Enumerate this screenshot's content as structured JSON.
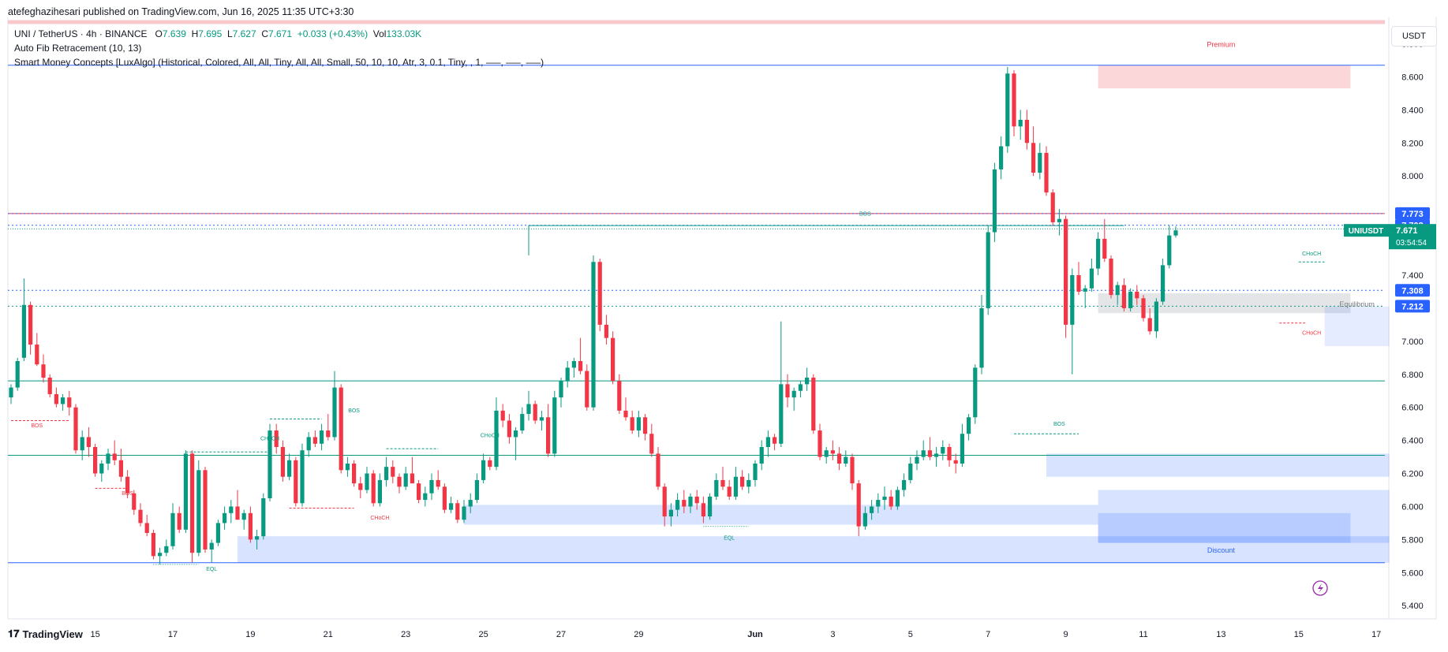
{
  "header": {
    "published_by": "atefeghazihesari published on TradingView.com, Jun 16, 2025 11:35 UTC+3:30"
  },
  "legend": {
    "symbol": "UNI / TetherUS · 4h · BINANCE",
    "open_label": "O",
    "open": "7.639",
    "high_label": "H",
    "high": "7.695",
    "low_label": "L",
    "low": "7.627",
    "close_label": "C",
    "close": "7.671",
    "change": "+0.033 (+0.43%)",
    "vol_label": "Vol",
    "vol": "133.03K",
    "indicator_1": "Auto Fib Retracement (10, 13)",
    "indicator_2": "Smart Money Concepts [LuxAlgo] (Historical, Colored, All, All, Tiny, All, All, Small, 50, 10, 10, Atr, 3, 0.1, Tiny, , 1, —–, —–, —–)"
  },
  "currency_button": "USDT",
  "footer": {
    "brand": "TradingView"
  },
  "colors": {
    "up": "#089981",
    "down": "#f23645",
    "accent": "#2962ff"
  },
  "chart_data": {
    "type": "candlestick",
    "symbol": "UNIUSDT",
    "interval": "4h",
    "y_ticks": [
      "8.800",
      "8.600",
      "8.400",
      "8.200",
      "8.000",
      "7.400",
      "7.200",
      "7.000",
      "6.800",
      "6.600",
      "6.400",
      "6.200",
      "6.000",
      "5.800",
      "5.600",
      "5.400"
    ],
    "ylim": [
      5.32,
      8.96
    ],
    "x_ticks": [
      {
        "label": "15",
        "i": 13
      },
      {
        "label": "17",
        "i": 25
      },
      {
        "label": "19",
        "i": 37
      },
      {
        "label": "21",
        "i": 49
      },
      {
        "label": "23",
        "i": 61
      },
      {
        "label": "25",
        "i": 73
      },
      {
        "label": "27",
        "i": 85
      },
      {
        "label": "29",
        "i": 97
      },
      {
        "label": "Jun",
        "i": 115
      },
      {
        "label": "3",
        "i": 127
      },
      {
        "label": "5",
        "i": 139
      },
      {
        "label": "7",
        "i": 151
      },
      {
        "label": "9",
        "i": 163
      },
      {
        "label": "11",
        "i": 175
      },
      {
        "label": "13",
        "i": 187
      },
      {
        "label": "15",
        "i": 199
      },
      {
        "label": "17",
        "i": 211
      }
    ],
    "price_labels": [
      {
        "text": "7.773",
        "value": 7.773,
        "color": "#2962ff"
      },
      {
        "text": "7.702",
        "value": 7.702,
        "color": "#2962ff"
      },
      {
        "text": "7.308",
        "value": 7.308,
        "color": "#2962ff"
      },
      {
        "text": "7.212",
        "value": 7.212,
        "color": "#2962ff"
      }
    ],
    "last_price": {
      "symbol": "UNIUSDT",
      "price": "7.671",
      "value": 7.671,
      "countdown": "03:54:54"
    },
    "zone_labels": {
      "premium": "Premium",
      "discount": "Discount",
      "equilibrium": "Equilibrium"
    },
    "smc_labels": [
      {
        "text": "BOS",
        "i": 4,
        "value": 6.48,
        "color": "#f23645"
      },
      {
        "text": "BOS",
        "i": 18,
        "value": 6.07,
        "color": "#f23645"
      },
      {
        "text": "CHoCH",
        "i": 40,
        "value": 6.4,
        "color": "#089981"
      },
      {
        "text": "BOS",
        "i": 53,
        "value": 6.57,
        "color": "#089981"
      },
      {
        "text": "CHoCH",
        "i": 57,
        "value": 5.92,
        "color": "#f23645"
      },
      {
        "text": "CHoCH",
        "i": 74,
        "value": 6.42,
        "color": "#089981"
      },
      {
        "text": "EQL",
        "i": 31,
        "value": 5.61,
        "color": "#089981"
      },
      {
        "text": "EQL",
        "i": 111,
        "value": 5.8,
        "color": "#089981"
      },
      {
        "text": "BOS",
        "i": 132,
        "value": 7.76,
        "color": "#089981"
      },
      {
        "text": "BOS",
        "i": 162,
        "value": 6.49,
        "color": "#089981"
      },
      {
        "text": "CHoCH",
        "i": 201,
        "value": 7.52,
        "color": "#089981"
      },
      {
        "text": "CHoCH",
        "i": 201,
        "value": 7.04,
        "color": "#f23645"
      }
    ],
    "candles": [
      [
        6.66,
        6.74,
        6.62,
        6.72
      ],
      [
        6.72,
        6.9,
        6.7,
        6.88
      ],
      [
        6.9,
        7.38,
        6.88,
        7.22
      ],
      [
        7.22,
        7.24,
        6.92,
        6.98
      ],
      [
        6.98,
        7.05,
        6.85,
        6.86
      ],
      [
        6.86,
        6.92,
        6.75,
        6.78
      ],
      [
        6.78,
        6.8,
        6.66,
        6.68
      ],
      [
        6.68,
        6.72,
        6.6,
        6.62
      ],
      [
        6.62,
        6.68,
        6.58,
        6.66
      ],
      [
        6.66,
        6.7,
        6.55,
        6.6
      ],
      [
        6.6,
        6.62,
        6.32,
        6.34
      ],
      [
        6.34,
        6.46,
        6.28,
        6.42
      ],
      [
        6.42,
        6.48,
        6.3,
        6.36
      ],
      [
        6.36,
        6.38,
        6.18,
        6.2
      ],
      [
        6.2,
        6.28,
        6.15,
        6.26
      ],
      [
        6.26,
        6.35,
        6.22,
        6.32
      ],
      [
        6.32,
        6.4,
        6.25,
        6.28
      ],
      [
        6.28,
        6.35,
        6.15,
        6.18
      ],
      [
        6.18,
        6.22,
        6.05,
        6.08
      ],
      [
        6.08,
        6.1,
        5.95,
        5.98
      ],
      [
        5.98,
        6.02,
        5.88,
        5.9
      ],
      [
        5.9,
        5.95,
        5.82,
        5.84
      ],
      [
        5.84,
        5.86,
        5.68,
        5.7
      ],
      [
        5.7,
        5.75,
        5.65,
        5.72
      ],
      [
        5.72,
        5.8,
        5.7,
        5.76
      ],
      [
        5.76,
        6.02,
        5.74,
        5.96
      ],
      [
        5.96,
        6.0,
        5.84,
        5.86
      ],
      [
        5.86,
        6.34,
        5.84,
        6.32
      ],
      [
        6.32,
        6.34,
        5.66,
        5.72
      ],
      [
        5.72,
        6.28,
        5.7,
        6.22
      ],
      [
        6.22,
        6.24,
        5.72,
        5.74
      ],
      [
        5.74,
        5.8,
        5.66,
        5.78
      ],
      [
        5.78,
        5.92,
        5.76,
        5.9
      ],
      [
        5.9,
        6.0,
        5.86,
        5.96
      ],
      [
        5.96,
        6.04,
        5.9,
        6.0
      ],
      [
        6.0,
        6.1,
        5.95,
        5.92
      ],
      [
        5.92,
        5.98,
        5.86,
        5.96
      ],
      [
        5.96,
        6.0,
        5.78,
        5.8
      ],
      [
        5.8,
        5.86,
        5.74,
        5.82
      ],
      [
        5.82,
        6.08,
        5.8,
        6.05
      ],
      [
        6.05,
        6.5,
        6.03,
        6.46
      ],
      [
        6.46,
        6.5,
        6.32,
        6.36
      ],
      [
        6.36,
        6.4,
        6.15,
        6.18
      ],
      [
        6.18,
        6.32,
        6.16,
        6.28
      ],
      [
        6.28,
        6.3,
        6.0,
        6.02
      ],
      [
        6.02,
        6.38,
        6.0,
        6.34
      ],
      [
        6.34,
        6.45,
        6.3,
        6.42
      ],
      [
        6.42,
        6.46,
        6.36,
        6.38
      ],
      [
        6.38,
        6.5,
        6.34,
        6.46
      ],
      [
        6.46,
        6.56,
        6.4,
        6.42
      ],
      [
        6.42,
        6.82,
        6.4,
        6.72
      ],
      [
        6.72,
        6.74,
        6.2,
        6.22
      ],
      [
        6.22,
        6.3,
        6.18,
        6.26
      ],
      [
        6.26,
        6.28,
        6.12,
        6.14
      ],
      [
        6.14,
        6.18,
        6.05,
        6.1
      ],
      [
        6.1,
        6.24,
        6.08,
        6.2
      ],
      [
        6.2,
        6.22,
        6.0,
        6.02
      ],
      [
        6.02,
        6.2,
        6.0,
        6.16
      ],
      [
        6.16,
        6.3,
        6.12,
        6.24
      ],
      [
        6.24,
        6.28,
        6.14,
        6.18
      ],
      [
        6.18,
        6.2,
        6.08,
        6.12
      ],
      [
        6.12,
        6.24,
        6.1,
        6.2
      ],
      [
        6.2,
        6.3,
        6.16,
        6.14
      ],
      [
        6.14,
        6.16,
        6.02,
        6.04
      ],
      [
        6.04,
        6.12,
        6.0,
        6.08
      ],
      [
        6.08,
        6.2,
        6.04,
        6.16
      ],
      [
        6.16,
        6.22,
        6.1,
        6.12
      ],
      [
        6.12,
        6.14,
        5.96,
        5.98
      ],
      [
        5.98,
        6.06,
        5.96,
        6.02
      ],
      [
        6.02,
        6.04,
        5.9,
        5.92
      ],
      [
        5.92,
        6.04,
        5.9,
        6.0
      ],
      [
        6.0,
        6.08,
        5.96,
        6.04
      ],
      [
        6.04,
        6.2,
        6.02,
        6.16
      ],
      [
        6.16,
        6.32,
        6.14,
        6.28
      ],
      [
        6.28,
        6.3,
        6.22,
        6.24
      ],
      [
        6.24,
        6.66,
        6.22,
        6.58
      ],
      [
        6.58,
        6.62,
        6.48,
        6.52
      ],
      [
        6.52,
        6.56,
        6.38,
        6.42
      ],
      [
        6.42,
        6.48,
        6.28,
        6.46
      ],
      [
        6.46,
        6.6,
        6.44,
        6.56
      ],
      [
        6.56,
        6.7,
        6.52,
        6.62
      ],
      [
        6.62,
        6.64,
        6.5,
        6.52
      ],
      [
        6.52,
        6.58,
        6.46,
        6.54
      ],
      [
        6.54,
        6.62,
        6.3,
        6.32
      ],
      [
        6.32,
        6.7,
        6.3,
        6.66
      ],
      [
        6.66,
        6.78,
        6.6,
        6.76
      ],
      [
        6.76,
        6.88,
        6.72,
        6.84
      ],
      [
        6.84,
        6.9,
        6.78,
        6.88
      ],
      [
        6.88,
        7.02,
        6.8,
        6.82
      ],
      [
        6.82,
        6.86,
        6.58,
        6.6
      ],
      [
        6.6,
        7.52,
        6.58,
        7.48
      ],
      [
        7.48,
        7.5,
        7.06,
        7.1
      ],
      [
        7.1,
        7.16,
        6.98,
        7.02
      ],
      [
        7.02,
        7.06,
        6.74,
        6.76
      ],
      [
        6.76,
        6.8,
        6.56,
        6.58
      ],
      [
        6.58,
        6.66,
        6.52,
        6.54
      ],
      [
        6.54,
        6.58,
        6.44,
        6.46
      ],
      [
        6.46,
        6.58,
        6.42,
        6.54
      ],
      [
        6.54,
        6.56,
        6.4,
        6.44
      ],
      [
        6.44,
        6.5,
        6.3,
        6.32
      ],
      [
        6.32,
        6.36,
        6.1,
        6.12
      ],
      [
        6.12,
        6.14,
        5.88,
        5.94
      ],
      [
        5.94,
        6.02,
        5.88,
        5.98
      ],
      [
        5.98,
        6.08,
        5.94,
        6.04
      ],
      [
        6.04,
        6.1,
        5.96,
        6.0
      ],
      [
        6.0,
        6.08,
        5.96,
        6.06
      ],
      [
        6.06,
        6.1,
        5.98,
        6.02
      ],
      [
        6.02,
        6.06,
        5.9,
        5.94
      ],
      [
        5.94,
        6.08,
        5.92,
        6.06
      ],
      [
        6.06,
        6.2,
        6.04,
        6.16
      ],
      [
        6.16,
        6.24,
        6.1,
        6.12
      ],
      [
        6.12,
        6.16,
        6.04,
        6.06
      ],
      [
        6.06,
        6.24,
        6.04,
        6.18
      ],
      [
        6.18,
        6.22,
        6.1,
        6.12
      ],
      [
        6.12,
        6.2,
        6.08,
        6.16
      ],
      [
        6.16,
        6.28,
        6.12,
        6.26
      ],
      [
        6.26,
        6.4,
        6.22,
        6.36
      ],
      [
        6.36,
        6.46,
        6.3,
        6.42
      ],
      [
        6.42,
        6.44,
        6.34,
        6.38
      ],
      [
        6.38,
        7.12,
        6.36,
        6.74
      ],
      [
        6.74,
        6.8,
        6.6,
        6.66
      ],
      [
        6.66,
        6.72,
        6.58,
        6.7
      ],
      [
        6.7,
        6.76,
        6.66,
        6.74
      ],
      [
        6.74,
        6.84,
        6.7,
        6.78
      ],
      [
        6.78,
        6.8,
        6.44,
        6.46
      ],
      [
        6.46,
        6.5,
        6.28,
        6.3
      ],
      [
        6.3,
        6.36,
        6.26,
        6.34
      ],
      [
        6.34,
        6.4,
        6.28,
        6.32
      ],
      [
        6.32,
        6.36,
        6.22,
        6.26
      ],
      [
        6.26,
        6.34,
        6.24,
        6.3
      ],
      [
        6.3,
        6.32,
        6.1,
        6.14
      ],
      [
        6.14,
        6.16,
        5.82,
        5.88
      ],
      [
        5.88,
        6.0,
        5.86,
        5.96
      ],
      [
        5.96,
        6.04,
        5.92,
        6.0
      ],
      [
        6.0,
        6.08,
        5.96,
        6.04
      ],
      [
        6.04,
        6.12,
        5.98,
        6.06
      ],
      [
        6.06,
        6.1,
        5.98,
        6.0
      ],
      [
        6.0,
        6.12,
        5.98,
        6.1
      ],
      [
        6.1,
        6.2,
        6.06,
        6.16
      ],
      [
        6.16,
        6.3,
        6.14,
        6.26
      ],
      [
        6.26,
        6.34,
        6.22,
        6.3
      ],
      [
        6.3,
        6.4,
        6.28,
        6.34
      ],
      [
        6.34,
        6.42,
        6.28,
        6.3
      ],
      [
        6.3,
        6.36,
        6.24,
        6.32
      ],
      [
        6.32,
        6.4,
        6.28,
        6.36
      ],
      [
        6.36,
        6.38,
        6.24,
        6.28
      ],
      [
        6.28,
        6.32,
        6.2,
        6.26
      ],
      [
        6.26,
        6.5,
        6.24,
        6.44
      ],
      [
        6.44,
        6.56,
        6.4,
        6.54
      ],
      [
        6.54,
        6.86,
        6.5,
        6.84
      ],
      [
        6.84,
        7.28,
        6.8,
        7.2
      ],
      [
        7.2,
        7.7,
        7.16,
        7.66
      ],
      [
        7.66,
        8.08,
        7.6,
        8.04
      ],
      [
        8.04,
        8.24,
        7.98,
        8.18
      ],
      [
        8.18,
        8.66,
        8.14,
        8.62
      ],
      [
        8.62,
        8.64,
        8.24,
        8.3
      ],
      [
        8.3,
        8.4,
        8.22,
        8.34
      ],
      [
        8.34,
        8.4,
        8.16,
        8.2
      ],
      [
        8.2,
        8.3,
        8.0,
        8.02
      ],
      [
        8.02,
        8.2,
        7.98,
        8.14
      ],
      [
        8.14,
        8.18,
        7.88,
        7.9
      ],
      [
        7.9,
        7.92,
        7.7,
        7.72
      ],
      [
        7.72,
        7.8,
        7.64,
        7.74
      ],
      [
        7.74,
        7.76,
        7.02,
        7.1
      ],
      [
        7.1,
        7.44,
        6.8,
        7.4
      ],
      [
        7.4,
        7.48,
        7.28,
        7.3
      ],
      [
        7.3,
        7.34,
        7.2,
        7.32
      ],
      [
        7.32,
        7.5,
        7.3,
        7.44
      ],
      [
        7.44,
        7.66,
        7.4,
        7.62
      ],
      [
        7.62,
        7.74,
        7.48,
        7.5
      ],
      [
        7.5,
        7.52,
        7.26,
        7.28
      ],
      [
        7.28,
        7.36,
        7.22,
        7.34
      ],
      [
        7.34,
        7.38,
        7.18,
        7.2
      ],
      [
        7.2,
        7.32,
        7.18,
        7.3
      ],
      [
        7.3,
        7.34,
        7.22,
        7.26
      ],
      [
        7.26,
        7.28,
        7.12,
        7.14
      ],
      [
        7.14,
        7.2,
        7.04,
        7.06
      ],
      [
        7.06,
        7.26,
        7.02,
        7.24
      ],
      [
        7.24,
        7.5,
        7.22,
        7.46
      ],
      [
        7.46,
        7.7,
        7.44,
        7.64
      ],
      [
        7.64,
        7.695,
        7.627,
        7.671
      ]
    ]
  }
}
